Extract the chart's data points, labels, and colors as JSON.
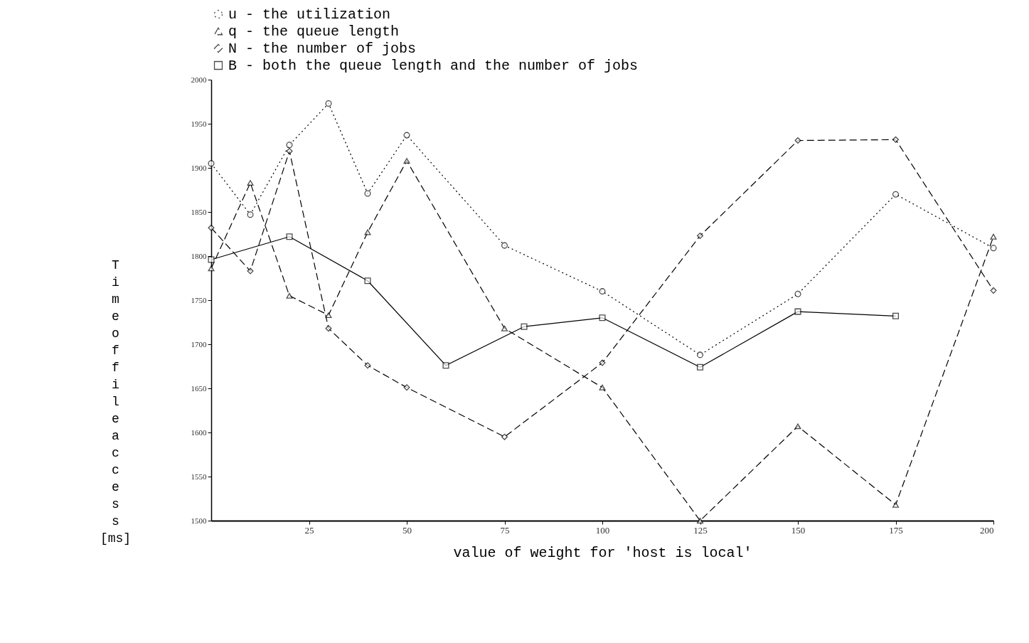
{
  "chart_data": {
    "type": "line",
    "xlabel": "value of weight for 'host is local'",
    "ylabel": "Time of file access [ms]",
    "xlim": [
      0,
      200
    ],
    "ylim": [
      1500,
      2000
    ],
    "xticks": [
      25,
      50,
      75,
      100,
      125,
      150,
      175,
      200
    ],
    "yticks": [
      1500,
      1550,
      1600,
      1650,
      1700,
      1750,
      1800,
      1850,
      1900,
      1950,
      2000
    ],
    "grid": false,
    "legend": "top",
    "series": [
      {
        "name": "u - the utilization",
        "color": "#000000",
        "line_style": "dotted",
        "marker": "circle",
        "x": [
          0,
          10,
          20,
          30,
          40,
          50,
          75,
          100,
          125,
          150,
          175,
          200
        ],
        "values": [
          1905,
          1847,
          1926,
          1973,
          1871,
          1937,
          1812,
          1760,
          1688,
          1757,
          1870,
          1809
        ]
      },
      {
        "name": "q - the queue length",
        "color": "#000000",
        "line_style": "dashed",
        "marker": "triangle",
        "x": [
          0,
          10,
          20,
          30,
          40,
          50,
          75,
          100,
          125,
          150,
          175,
          200
        ],
        "values": [
          1786,
          1883,
          1755,
          1733,
          1827,
          1908,
          1718,
          1651,
          1500,
          1607,
          1518,
          1822
        ]
      },
      {
        "name": "N - the number of jobs",
        "color": "#000000",
        "line_style": "dashed",
        "marker": "diamond",
        "x": [
          0,
          10,
          20,
          30,
          40,
          50,
          75,
          100,
          125,
          150,
          175,
          200
        ],
        "values": [
          1832,
          1783,
          1919,
          1718,
          1676,
          1651,
          1595,
          1679,
          1823,
          1931,
          1932,
          1761
        ]
      },
      {
        "name": "B - both the queue length and the number of jobs",
        "color": "#000000",
        "line_style": "solid",
        "marker": "square",
        "x": [
          0,
          20,
          40,
          60,
          80,
          100,
          125,
          150,
          175
        ],
        "values": [
          1796,
          1822,
          1772,
          1676,
          1720,
          1730,
          1674,
          1737,
          1732
        ]
      }
    ]
  }
}
